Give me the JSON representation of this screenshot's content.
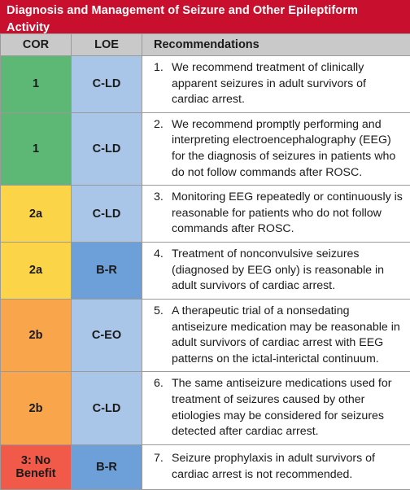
{
  "title": "Diagnosis and Management of Seizure and Other Epileptiform Activity",
  "headers": {
    "cor": "COR",
    "loe": "LOE",
    "recommendations": "Recommendations"
  },
  "colors": {
    "title_bar": "#c8102e",
    "header_bg": "#c9c9c9",
    "cor_1": "#5cb874",
    "cor_2a": "#fcd447",
    "cor_2b": "#f9a54b",
    "cor_3_no_benefit": "#f15a48",
    "loe_nonrandomized": "#a9c6e8",
    "loe_B-R": "#6d9fd8"
  },
  "rows": [
    {
      "cor": "1",
      "loe": "C-LD",
      "num": "1.",
      "text": "We recommend treatment of clinically apparent seizures in adult survivors of cardiac arrest."
    },
    {
      "cor": "1",
      "loe": "C-LD",
      "num": "2.",
      "text": "We recommend promptly performing and interpreting electroencephalography (EEG) for the diagnosis of seizures in patients who do not follow commands after ROSC."
    },
    {
      "cor": "2a",
      "loe": "C-LD",
      "num": "3.",
      "text": "Monitoring EEG repeatedly or continuously is reasonable for patients who do not follow commands after ROSC."
    },
    {
      "cor": "2a",
      "loe": "B-R",
      "num": "4.",
      "text": "Treatment of nonconvulsive seizures (diagnosed by EEG only) is reasonable in adult survivors of cardiac arrest."
    },
    {
      "cor": "2b",
      "loe": "C-EO",
      "num": "5.",
      "text": "A therapeutic trial of a nonsedating antiseizure medication may be reasonable in adult survivors of cardiac arrest with EEG patterns on the ictal-interictal continuum."
    },
    {
      "cor": "2b",
      "loe": "C-LD",
      "num": "6.",
      "text": "The same antiseizure medications used for treatment of seizures caused by other etiologies may be considered for seizures detected after cardiac arrest."
    },
    {
      "cor": "3: No Benefit",
      "loe": "B-R",
      "num": "7.",
      "text": "Seizure prophylaxis in adult survivors of cardiac arrest is not recommended."
    }
  ]
}
